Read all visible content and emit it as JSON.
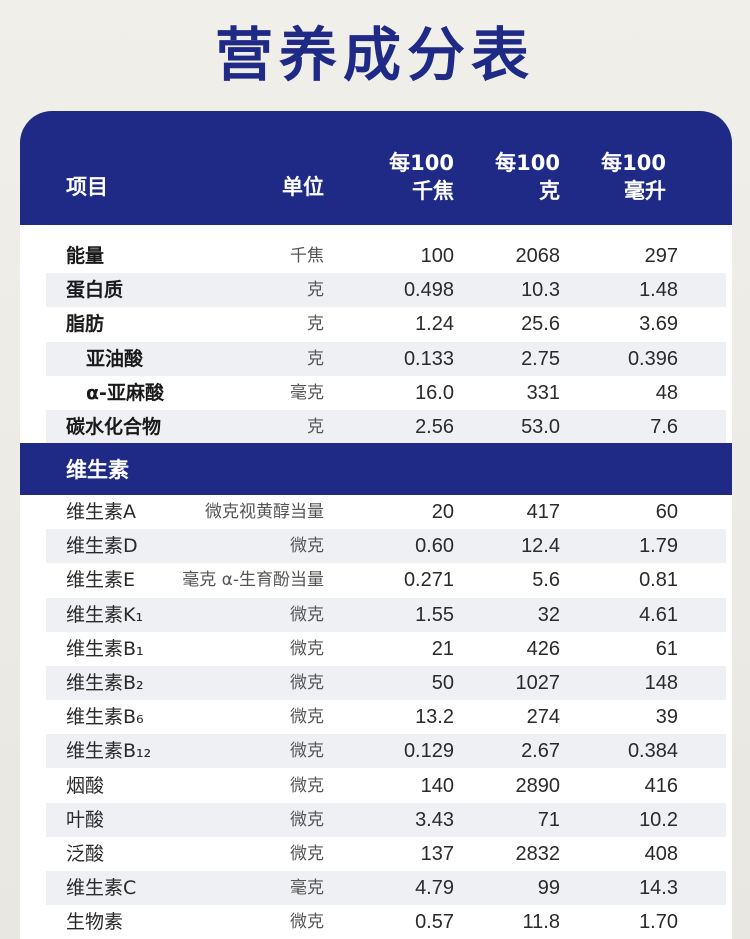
{
  "title": "营养成分表",
  "header": {
    "item": "项目",
    "unit": "单位",
    "per_kj": [
      "每100",
      "千焦"
    ],
    "per_g": [
      "每100",
      "克"
    ],
    "per_ml": [
      "每100",
      "毫升"
    ]
  },
  "rows_main": [
    {
      "name": "能量",
      "unit": "千焦",
      "kj": "100",
      "g": "2068",
      "ml": "297",
      "style": "bold"
    },
    {
      "name": "蛋白质",
      "unit": "克",
      "kj": "0.498",
      "g": "10.3",
      "ml": "1.48",
      "style": "bold"
    },
    {
      "name": "脂肪",
      "unit": "克",
      "kj": "1.24",
      "g": "25.6",
      "ml": "3.69",
      "style": "bold"
    },
    {
      "name": "亚油酸",
      "unit": "克",
      "kj": "0.133",
      "g": "2.75",
      "ml": "0.396",
      "style": "indent"
    },
    {
      "name": "α-亚麻酸",
      "unit": "毫克",
      "kj": "16.0",
      "g": "331",
      "ml": "48",
      "style": "indent"
    },
    {
      "name": "碳水化合物",
      "unit": "克",
      "kj": "2.56",
      "g": "53.0",
      "ml": "7.6",
      "style": "bold"
    }
  ],
  "section_vitamins": "维生素",
  "rows_vitamins": [
    {
      "name": "维生素A",
      "unit": "微克视黄醇当量",
      "kj": "20",
      "g": "417",
      "ml": "60"
    },
    {
      "name": "维生素D",
      "unit": "微克",
      "kj": "0.60",
      "g": "12.4",
      "ml": "1.79"
    },
    {
      "name": "维生素E",
      "unit": "毫克 α-生育酚当量",
      "kj": "0.271",
      "g": "5.6",
      "ml": "0.81"
    },
    {
      "name": "维生素K₁",
      "unit": "微克",
      "kj": "1.55",
      "g": "32",
      "ml": "4.61"
    },
    {
      "name": "维生素B₁",
      "unit": "微克",
      "kj": "21",
      "g": "426",
      "ml": "61"
    },
    {
      "name": "维生素B₂",
      "unit": "微克",
      "kj": "50",
      "g": "1027",
      "ml": "148"
    },
    {
      "name": "维生素B₆",
      "unit": "微克",
      "kj": "13.2",
      "g": "274",
      "ml": "39"
    },
    {
      "name": "维生素B₁₂",
      "unit": "微克",
      "kj": "0.129",
      "g": "2.67",
      "ml": "0.384"
    },
    {
      "name": "烟酸",
      "unit": "微克",
      "kj": "140",
      "g": "2890",
      "ml": "416"
    },
    {
      "name": "叶酸",
      "unit": "微克",
      "kj": "3.43",
      "g": "71",
      "ml": "10.2"
    },
    {
      "name": "泛酸",
      "unit": "微克",
      "kj": "137",
      "g": "2832",
      "ml": "408"
    },
    {
      "name": "维生素C",
      "unit": "毫克",
      "kj": "4.79",
      "g": "99",
      "ml": "14.3"
    },
    {
      "name": "生物素",
      "unit": "微克",
      "kj": "0.57",
      "g": "11.8",
      "ml": "1.70"
    }
  ]
}
